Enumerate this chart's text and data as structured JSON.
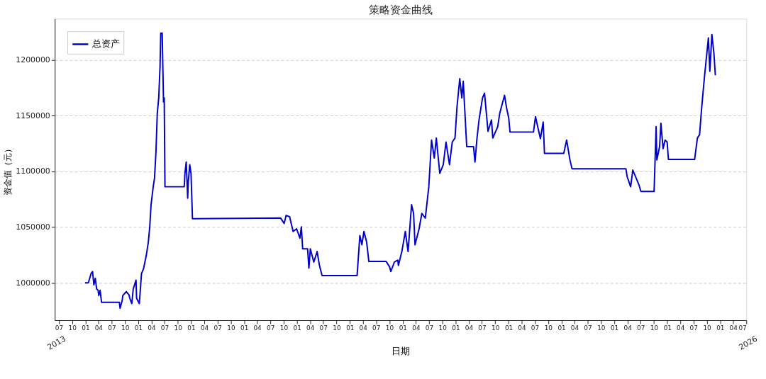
{
  "chart_data": {
    "type": "line",
    "title": "策略资金曲线",
    "xlabel": "日期",
    "ylabel": "资金值（元）",
    "annotations": [
      "2013",
      "2026"
    ],
    "legend": "top left",
    "grid": "y",
    "marker": "none",
    "line_style": "solid",
    "xlim": [
      "2013-06-03",
      "2026-07-01"
    ],
    "ylim": [
      966500,
      1237000
    ],
    "yticks": [
      1000000,
      1050000,
      1100000,
      1150000,
      1200000
    ],
    "xticks": [
      {
        "value": "2013-07-01",
        "label": "07"
      },
      {
        "value": "2013-10-01",
        "label": "10"
      },
      {
        "value": "2014-01-01",
        "label": "01"
      },
      {
        "value": "2014-04-01",
        "label": "04"
      },
      {
        "value": "2014-07-01",
        "label": "07"
      },
      {
        "value": "2014-10-01",
        "label": "10"
      },
      {
        "value": "2015-01-01",
        "label": "01"
      },
      {
        "value": "2015-04-01",
        "label": "04"
      },
      {
        "value": "2015-07-01",
        "label": "07"
      },
      {
        "value": "2015-10-01",
        "label": "10"
      },
      {
        "value": "2016-01-01",
        "label": "01"
      },
      {
        "value": "2016-04-01",
        "label": "04"
      },
      {
        "value": "2016-07-01",
        "label": "07"
      },
      {
        "value": "2016-10-01",
        "label": "10"
      },
      {
        "value": "2017-01-01",
        "label": "01"
      },
      {
        "value": "2017-04-01",
        "label": "04"
      },
      {
        "value": "2017-07-01",
        "label": "07"
      },
      {
        "value": "2017-10-01",
        "label": "10"
      },
      {
        "value": "2018-01-01",
        "label": "01"
      },
      {
        "value": "2018-04-01",
        "label": "04"
      },
      {
        "value": "2018-07-01",
        "label": "07"
      },
      {
        "value": "2018-10-01",
        "label": "10"
      },
      {
        "value": "2019-01-01",
        "label": "01"
      },
      {
        "value": "2019-04-01",
        "label": "04"
      },
      {
        "value": "2019-07-01",
        "label": "07"
      },
      {
        "value": "2019-10-01",
        "label": "10"
      },
      {
        "value": "2020-01-01",
        "label": "01"
      },
      {
        "value": "2020-04-01",
        "label": "04"
      },
      {
        "value": "2020-07-01",
        "label": "07"
      },
      {
        "value": "2020-10-01",
        "label": "10"
      },
      {
        "value": "2021-01-01",
        "label": "01"
      },
      {
        "value": "2021-04-01",
        "label": "04"
      },
      {
        "value": "2021-07-01",
        "label": "07"
      },
      {
        "value": "2021-10-01",
        "label": "10"
      },
      {
        "value": "2022-01-01",
        "label": "01"
      },
      {
        "value": "2022-04-01",
        "label": "04"
      },
      {
        "value": "2022-07-01",
        "label": "07"
      },
      {
        "value": "2022-10-01",
        "label": "10"
      },
      {
        "value": "2023-01-01",
        "label": "01"
      },
      {
        "value": "2023-04-01",
        "label": "04"
      },
      {
        "value": "2023-07-01",
        "label": "07"
      },
      {
        "value": "2023-10-01",
        "label": "10"
      },
      {
        "value": "2024-01-01",
        "label": "01"
      },
      {
        "value": "2024-04-01",
        "label": "04"
      },
      {
        "value": "2024-07-01",
        "label": "07"
      },
      {
        "value": "2024-10-01",
        "label": "10"
      },
      {
        "value": "2025-01-01",
        "label": "01"
      },
      {
        "value": "2025-04-01",
        "label": "04"
      },
      {
        "value": "2025-07-01",
        "label": "07"
      },
      {
        "value": "2025-10-01",
        "label": "10"
      },
      {
        "value": "2026-01-01",
        "label": "01"
      },
      {
        "value": "2026-04-01",
        "label": "04"
      },
      {
        "value": "2026-07-01",
        "label": "07"
      }
    ],
    "series": [
      {
        "name": "总资产",
        "color": "#0000cd",
        "x": [
          "2013-12-29",
          "2014-01-21",
          "2014-02-09",
          "2014-02-19",
          "2014-02-28",
          "2014-03-10",
          "2014-03-19",
          "2014-03-29",
          "2014-04-03",
          "2014-04-12",
          "2014-04-22",
          "2014-08-23",
          "2014-08-28",
          "2014-09-12",
          "2014-09-16",
          "2014-10-10",
          "2014-10-29",
          "2014-11-03",
          "2014-11-17",
          "2014-11-27",
          "2014-12-06",
          "2014-12-16",
          "2014-12-20",
          "2015-01-08",
          "2015-01-23",
          "2015-02-06",
          "2015-02-25",
          "2015-03-11",
          "2015-03-21",
          "2015-03-30",
          "2015-04-14",
          "2015-04-23",
          "2015-05-03",
          "2015-05-12",
          "2015-05-22",
          "2015-05-31",
          "2015-06-05",
          "2015-06-15",
          "2015-06-24",
          "2015-06-29",
          "2015-07-04",
          "2015-11-14",
          "2015-11-19",
          "2015-11-28",
          "2015-12-08",
          "2015-12-12",
          "2015-12-22",
          "2015-12-31",
          "2016-01-10",
          "2017-09-10",
          "2017-10-04",
          "2017-10-18",
          "2017-11-11",
          "2017-12-05",
          "2017-12-29",
          "2018-01-21",
          "2018-01-31",
          "2018-02-09",
          "2018-03-15",
          "2018-03-24",
          "2018-04-03",
          "2018-04-27",
          "2018-05-20",
          "2018-06-04",
          "2018-06-23",
          "2019-02-20",
          "2019-03-11",
          "2019-03-25",
          "2019-04-08",
          "2019-04-27",
          "2019-05-12",
          "2019-09-08",
          "2019-10-02",
          "2019-10-11",
          "2019-11-04",
          "2019-11-28",
          "2019-12-02",
          "2019-12-26",
          "2020-01-19",
          "2020-02-07",
          "2020-03-02",
          "2020-03-16",
          "2020-03-26",
          "2020-04-23",
          "2020-05-12",
          "2020-06-05",
          "2020-06-29",
          "2020-07-18",
          "2020-08-06",
          "2020-08-20",
          "2020-09-13",
          "2020-10-07",
          "2020-10-26",
          "2020-11-19",
          "2020-12-08",
          "2020-12-27",
          "2021-01-10",
          "2021-01-29",
          "2021-02-12",
          "2021-02-22",
          "2021-03-18",
          "2021-05-04",
          "2021-05-14",
          "2021-05-28",
          "2021-06-11",
          "2021-07-05",
          "2021-07-19",
          "2021-08-12",
          "2021-09-05",
          "2021-09-14",
          "2021-10-18",
          "2021-11-01",
          "2021-12-04",
          "2021-12-19",
          "2022-01-02",
          "2022-01-11",
          "2022-06-22",
          "2022-07-06",
          "2022-07-21",
          "2022-08-09",
          "2022-08-28",
          "2022-09-06",
          "2023-01-17",
          "2023-02-06",
          "2023-03-01",
          "2023-03-15",
          "2024-03-21",
          "2024-03-30",
          "2024-04-23",
          "2024-05-08",
          "2024-05-31",
          "2024-06-19",
          "2024-07-03",
          "2024-10-02",
          "2024-10-16",
          "2024-10-21",
          "2024-11-09",
          "2024-11-18",
          "2024-12-03",
          "2024-12-17",
          "2024-12-31",
          "2025-01-09",
          "2025-07-09",
          "2025-07-28",
          "2025-08-12",
          "2025-08-26",
          "2025-09-14",
          "2025-09-28",
          "2025-10-12",
          "2025-10-22",
          "2025-11-05",
          "2025-11-19",
          "2025-11-29"
        ],
        "values": [
          1000000,
          1000000,
          1008400,
          1010200,
          998200,
          1004200,
          994600,
          993400,
          988600,
          993400,
          982600,
          982600,
          977200,
          984400,
          988600,
          992200,
          989200,
          986200,
          981400,
          994600,
          998200,
          1002400,
          986200,
          981400,
          1008400,
          1012600,
          1024600,
          1036500,
          1050300,
          1070100,
          1086200,
          1094000,
          1118000,
          1152100,
          1165900,
          1194000,
          1224000,
          1224000,
          1162300,
          1165900,
          1086200,
          1086200,
          1098200,
          1108400,
          1076000,
          1090400,
          1106000,
          1098200,
          1057500,
          1058100,
          1053300,
          1060500,
          1059300,
          1046100,
          1048500,
          1040100,
          1050300,
          1030500,
          1030500,
          1013200,
          1030500,
          1018600,
          1028100,
          1016200,
          1006600,
          1006600,
          1042500,
          1034100,
          1046100,
          1036500,
          1019200,
          1019200,
          1014400,
          1010200,
          1018600,
          1020400,
          1015600,
          1028100,
          1046100,
          1028100,
          1070100,
          1062300,
          1034100,
          1048500,
          1062300,
          1058100,
          1086200,
          1128100,
          1112000,
          1129900,
          1098200,
          1106000,
          1126300,
          1106000,
          1126300,
          1129900,
          1158100,
          1183200,
          1165900,
          1180800,
          1122200,
          1122200,
          1108400,
          1129900,
          1146100,
          1165900,
          1170100,
          1135900,
          1146100,
          1129900,
          1140100,
          1152100,
          1168300,
          1156300,
          1147900,
          1135300,
          1135300,
          1149100,
          1140100,
          1129300,
          1144300,
          1116200,
          1116200,
          1128100,
          1110200,
          1102400,
          1102400,
          1095200,
          1086200,
          1101200,
          1094000,
          1088000,
          1082000,
          1082000,
          1140100,
          1110200,
          1122200,
          1143100,
          1120400,
          1128100,
          1126300,
          1110800,
          1110800,
          1129900,
          1132900,
          1156300,
          1183800,
          1201800,
          1219800,
          1189800,
          1222800,
          1206000,
          1186200
        ]
      }
    ]
  }
}
